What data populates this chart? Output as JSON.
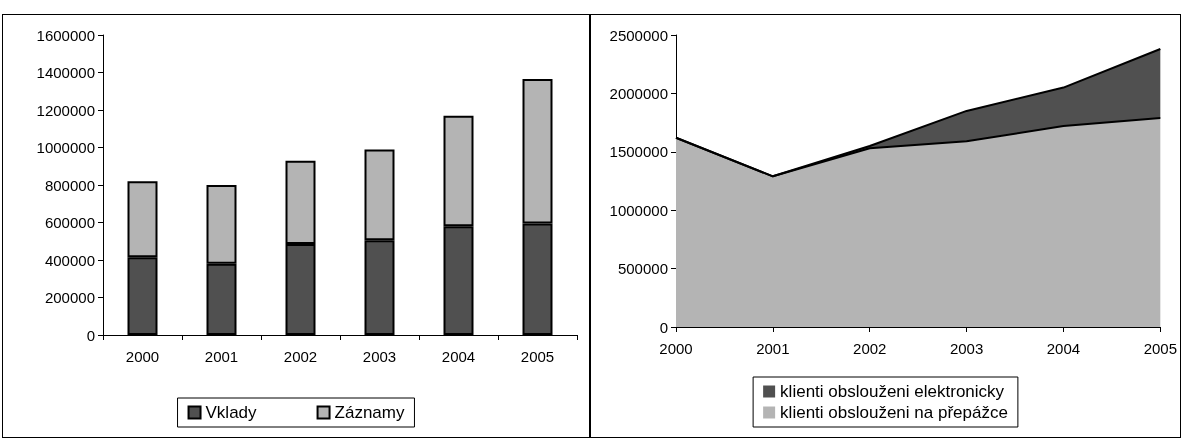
{
  "chart_data": [
    {
      "type": "bar",
      "stacked": true,
      "categories": [
        "2000",
        "2001",
        "2002",
        "2003",
        "2004",
        "2005"
      ],
      "series": [
        {
          "name": "Vklady",
          "color": "#505050",
          "values": [
            415000,
            380000,
            485000,
            505000,
            580000,
            595000
          ]
        },
        {
          "name": "Záznamy",
          "color": "#b4b4b4",
          "values": [
            405000,
            420000,
            445000,
            485000,
            590000,
            770000
          ]
        }
      ],
      "ylim": [
        0,
        1600000
      ],
      "yticks": [
        0,
        200000,
        400000,
        600000,
        800000,
        1000000,
        1200000,
        1400000,
        1600000
      ],
      "grid": false,
      "legend": "bottom"
    },
    {
      "type": "area",
      "stacked": true,
      "categories": [
        "2000",
        "2001",
        "2002",
        "2003",
        "2004",
        "2005"
      ],
      "series": [
        {
          "name": "klienti obslouženi na přepážce",
          "color": "#b4b4b4",
          "values": [
            1620000,
            1290000,
            1530000,
            1590000,
            1720000,
            1790000
          ]
        },
        {
          "name": "klienti obslouženi elektronicky",
          "color": "#505050",
          "values": [
            0,
            0,
            20000,
            260000,
            330000,
            590000
          ]
        }
      ],
      "ylim": [
        0,
        2500000
      ],
      "yticks": [
        0,
        500000,
        1000000,
        1500000,
        2000000,
        2500000
      ],
      "grid": false,
      "legend": "bottom"
    }
  ]
}
